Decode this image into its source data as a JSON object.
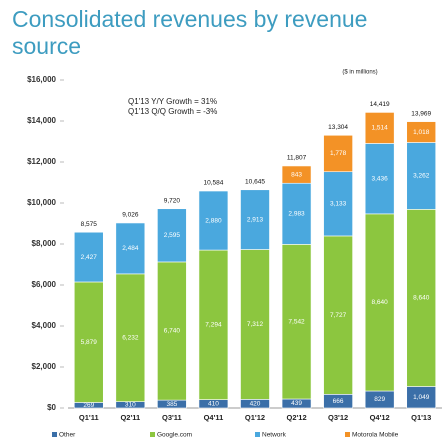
{
  "chart_data": {
    "type": "stacked-bar",
    "title": "Consolidated revenues by revenue source",
    "annotations": [
      "($ in millions)",
      "Q1'13 Y/Y Growth = 31%",
      "Q1'13 Q/Q Growth = -3%"
    ],
    "categories": [
      "Q1'11",
      "Q2'11",
      "Q3'11",
      "Q4'11",
      "Q1'12",
      "Q2'12",
      "Q3'12",
      "Q4'12",
      "Q1'13"
    ],
    "series": [
      {
        "name": "Other",
        "color": "#3b6fa8",
        "values": [
          269,
          310,
          385,
          410,
          420,
          439,
          666,
          829,
          1049
        ],
        "value_labels": [
          "269",
          "310",
          "385",
          "410",
          "420",
          "439",
          "666",
          "829",
          "1,049"
        ]
      },
      {
        "name": "Google.com",
        "color": "#8cc63f",
        "values": [
          5879,
          6232,
          6740,
          7294,
          7312,
          7542,
          7727,
          8640,
          8640
        ],
        "value_labels": [
          "5,879",
          "6,232",
          "6,740",
          "7,294",
          "7,312",
          "7,542",
          "7,727",
          "8,640",
          "8,640"
        ]
      },
      {
        "name": "Network",
        "color": "#4aa8de",
        "values": [
          2427,
          2484,
          2595,
          2880,
          2913,
          2983,
          3133,
          3436,
          3262
        ],
        "value_labels": [
          "2,427",
          "2,484",
          "2,595",
          "2,880",
          "2,913",
          "2,983",
          "3,133",
          "3,436",
          "3,262"
        ]
      },
      {
        "name": "Motorola Mobile",
        "color": "#f39226",
        "values": [
          null,
          null,
          null,
          null,
          null,
          843,
          1778,
          1514,
          1018
        ],
        "value_labels": [
          null,
          null,
          null,
          null,
          null,
          "843",
          "1,778",
          "1,514",
          "1,018"
        ]
      }
    ],
    "totals": [
      8575,
      9026,
      9720,
      10584,
      10645,
      11807,
      13304,
      14419,
      13969
    ],
    "totals_labels": [
      "8,575",
      "9,026",
      "9,720",
      "10,584",
      "10,645",
      "11,807",
      "13,304",
      "14,419",
      "13,969"
    ],
    "ylim": [
      0,
      16000
    ],
    "yticks": [
      {
        "value": 0,
        "label": "$0"
      },
      {
        "value": 2000,
        "label": "$2,000"
      },
      {
        "value": 4000,
        "label": "$4,000"
      },
      {
        "value": 6000,
        "label": "$6,000"
      },
      {
        "value": 8000,
        "label": "$8,000"
      },
      {
        "value": 10000,
        "label": "$10,000"
      },
      {
        "value": 12000,
        "label": "$12,000"
      },
      {
        "value": 14000,
        "label": "$14,000"
      },
      {
        "value": 16000,
        "label": "$16,000"
      }
    ]
  }
}
